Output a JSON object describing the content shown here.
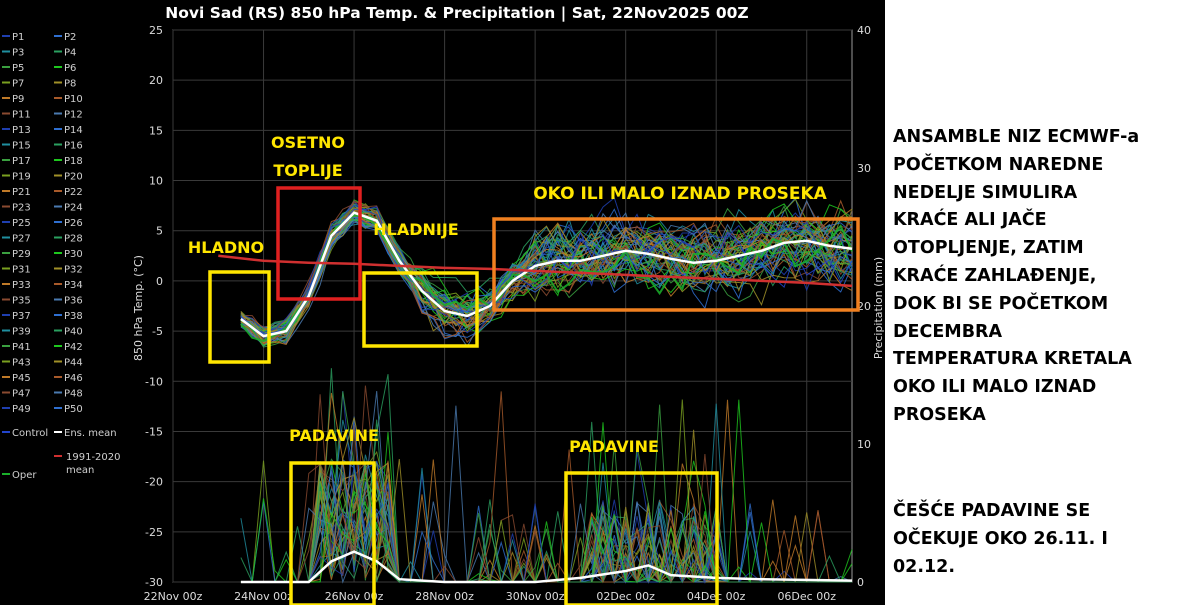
{
  "chart_data": {
    "type": "line",
    "title": "Novi Sad  (RS)  850 hPa Temp. & Precipitation | Sat, 22Nov2025 00Z",
    "ylabel": "850 hPa Temp. (°C)",
    "y2label": "Precipitation (mm)",
    "ylim": [
      -30,
      25
    ],
    "y2lim": [
      0,
      40
    ],
    "yticks": [
      25,
      20,
      15,
      10,
      5,
      0,
      -5,
      -10,
      -15,
      -20,
      -25,
      -30
    ],
    "y2ticks": [
      40,
      30,
      20,
      10,
      0
    ],
    "xticks": [
      "22Nov 00z",
      "24Nov 00z",
      "26Nov 00z",
      "28Nov 00z",
      "30Nov 00z",
      "02Dec 00z",
      "04Dec 00z",
      "06Dec 00z"
    ],
    "x_days": [
      0,
      2,
      4,
      6,
      8,
      10,
      12,
      14
    ],
    "grid": true,
    "legend_position": "left",
    "legend": [
      "P1",
      "P2",
      "P3",
      "P4",
      "P5",
      "P6",
      "P7",
      "P8",
      "P9",
      "P10",
      "P11",
      "P12",
      "P13",
      "P14",
      "P15",
      "P16",
      "P17",
      "P18",
      "P19",
      "P20",
      "P21",
      "P22",
      "P23",
      "P24",
      "P25",
      "P26",
      "P27",
      "P28",
      "P29",
      "P30",
      "P31",
      "P32",
      "P33",
      "P34",
      "P35",
      "P36",
      "P37",
      "P38",
      "P39",
      "P40",
      "P41",
      "P42",
      "P43",
      "P44",
      "P45",
      "P46",
      "P47",
      "P48",
      "P49",
      "P50",
      "Control",
      "Ens. mean",
      "1991-2020 mean",
      "Oper"
    ],
    "series_colors": {
      "members": [
        "#1f3fb0",
        "#2f6fd0",
        "#1f8fa0",
        "#2aa060",
        "#3aa040",
        "#1ec81e",
        "#7aa020",
        "#a09028",
        "#c07a28",
        "#a85a2a",
        "#8a4a30",
        "#4a7ab0"
      ],
      "control": "#2244cc",
      "ens_mean": "#ffffff",
      "climate_mean": "#d03030",
      "oper": "#1ab02a"
    },
    "series": [
      {
        "name": "Ens. mean",
        "axis": "temperature",
        "points": [
          [
            1.5,
            -3.8
          ],
          [
            2.0,
            -5.5
          ],
          [
            2.5,
            -5.0
          ],
          [
            3.0,
            -1.5
          ],
          [
            3.5,
            4.5
          ],
          [
            4.0,
            6.8
          ],
          [
            4.5,
            6.0
          ],
          [
            5.0,
            2.0
          ],
          [
            5.5,
            -1.0
          ],
          [
            6.0,
            -3.0
          ],
          [
            6.5,
            -3.5
          ],
          [
            7.0,
            -2.5
          ],
          [
            7.5,
            0.0
          ],
          [
            8.0,
            1.5
          ],
          [
            8.5,
            2.0
          ],
          [
            9.0,
            2.0
          ],
          [
            9.5,
            2.5
          ],
          [
            10.0,
            3.0
          ],
          [
            10.5,
            2.7
          ],
          [
            11.0,
            2.2
          ],
          [
            11.5,
            1.8
          ],
          [
            12.0,
            2.0
          ],
          [
            12.5,
            2.5
          ],
          [
            13.0,
            3.0
          ],
          [
            13.5,
            3.8
          ],
          [
            14.0,
            4.0
          ],
          [
            14.5,
            3.5
          ],
          [
            15.0,
            3.2
          ]
        ]
      },
      {
        "name": "1991-2020 mean",
        "axis": "temperature",
        "points": [
          [
            1.0,
            2.5
          ],
          [
            2.0,
            2.0
          ],
          [
            3.0,
            1.8
          ],
          [
            4.0,
            1.7
          ],
          [
            5.0,
            1.5
          ],
          [
            6.0,
            1.3
          ],
          [
            7.0,
            1.2
          ],
          [
            8.0,
            1.0
          ],
          [
            9.0,
            0.8
          ],
          [
            10.0,
            0.6
          ],
          [
            11.0,
            0.4
          ],
          [
            12.0,
            0.2
          ],
          [
            13.0,
            0.0
          ],
          [
            14.0,
            -0.2
          ],
          [
            15.0,
            -0.5
          ]
        ]
      },
      {
        "name": "Ens. mean",
        "axis": "precipitation",
        "points": [
          [
            1.5,
            0.0
          ],
          [
            3.0,
            0.0
          ],
          [
            3.5,
            1.5
          ],
          [
            4.0,
            2.2
          ],
          [
            4.5,
            1.5
          ],
          [
            5.0,
            0.2
          ],
          [
            6.0,
            0.0
          ],
          [
            8.0,
            0.0
          ],
          [
            9.0,
            0.3
          ],
          [
            10.0,
            0.8
          ],
          [
            10.5,
            1.2
          ],
          [
            11.0,
            0.5
          ],
          [
            12.0,
            0.3
          ],
          [
            13.0,
            0.2
          ],
          [
            15.0,
            0.1
          ]
        ]
      }
    ],
    "annotations": [
      {
        "id": "hladno",
        "label": "HLADNO",
        "box_color": "#ffe600"
      },
      {
        "id": "osetno",
        "label": "OSETNO\nTOPLIJE",
        "box_color": "#e02020"
      },
      {
        "id": "hladnije",
        "label": "HLADNIJE",
        "box_color": "#ffe600"
      },
      {
        "id": "proseka",
        "label": "OKO ILI MALO IZNAD PROSEKA",
        "box_color": "#f08020"
      },
      {
        "id": "padavine1",
        "label": "PADAVINE",
        "box_color": "#ffe600"
      },
      {
        "id": "padavine2",
        "label": "PADAVINE",
        "box_color": "#ffe600"
      }
    ]
  },
  "commentary": {
    "main": "ANSAMBLE NIZ ECMWF-a\nPOČETKOM NAREDNE\nNEDELJE SIMULIRA\nKRAĆE ALI JAČE\nOTOPLJENJE, ZATIM\nKRAĆE ZAHLAĐENJE,\nDOK BI SE POČETKOM\nDECEMBRA\nTEMPERATURA KRETALA\nOKO ILI MALO IZNAD\nPROSEKA",
    "precip": "ČEŠĆE PADAVINE SE\nOČEKUJE OKO 26.11. I\n02.12."
  }
}
